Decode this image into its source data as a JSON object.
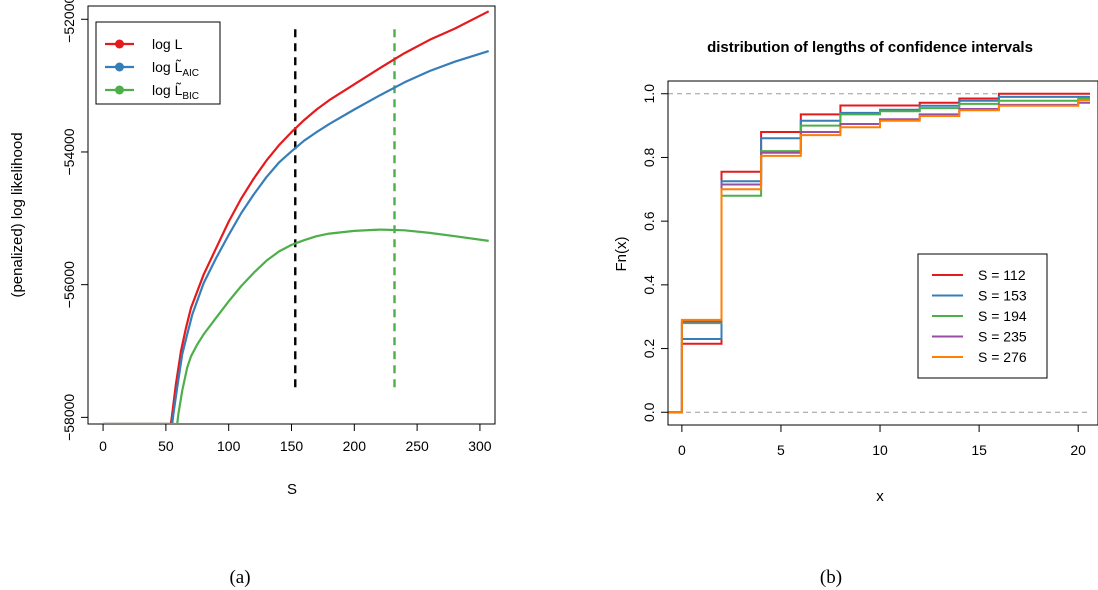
{
  "chart_data": [
    {
      "type": "line",
      "title": "",
      "xlabel": "S",
      "ylabel": "(penalized) log likelihood",
      "caption": "(a)",
      "xlim": [
        -12,
        312
      ],
      "ylim": [
        -58100,
        -51800
      ],
      "xticks": [
        0,
        50,
        100,
        150,
        200,
        250,
        300
      ],
      "yticks": [
        -58000,
        -56000,
        -54000,
        -52000
      ],
      "grid": false,
      "legend_position": "top-left",
      "series": [
        {
          "name": "log L",
          "legend_main": "log L",
          "legend_sub": "",
          "color": "#e41a1c",
          "x": [
            0,
            54,
            55,
            58,
            62,
            66,
            70,
            80,
            90,
            100,
            110,
            120,
            130,
            140,
            150,
            160,
            170,
            180,
            200,
            220,
            240,
            260,
            280,
            307
          ],
          "y": [
            -58100,
            -58100,
            -57950,
            -57500,
            -57000,
            -56650,
            -56350,
            -55850,
            -55450,
            -55050,
            -54700,
            -54400,
            -54130,
            -53900,
            -53700,
            -53520,
            -53360,
            -53220,
            -52980,
            -52740,
            -52510,
            -52310,
            -52140,
            -51880
          ]
        },
        {
          "name": "log L̃_AIC",
          "legend_main": "log L̃",
          "legend_sub": "AIC",
          "color": "#377eb8",
          "x": [
            0,
            55,
            56,
            59,
            63,
            67,
            71,
            80,
            90,
            100,
            110,
            120,
            130,
            140,
            150,
            160,
            170,
            180,
            200,
            220,
            240,
            260,
            280,
            307
          ],
          "y": [
            -58100,
            -58100,
            -57950,
            -57550,
            -57050,
            -56750,
            -56450,
            -55980,
            -55600,
            -55250,
            -54920,
            -54640,
            -54380,
            -54160,
            -53990,
            -53830,
            -53700,
            -53580,
            -53360,
            -53150,
            -52950,
            -52780,
            -52640,
            -52480
          ]
        },
        {
          "name": "log L̃_BIC",
          "legend_main": "log L̃",
          "legend_sub": "BIC",
          "color": "#4daf4a",
          "x": [
            0,
            59,
            60,
            63,
            67,
            70,
            75,
            80,
            90,
            100,
            110,
            120,
            130,
            140,
            150,
            160,
            170,
            180,
            200,
            220,
            240,
            260,
            280,
            307
          ],
          "y": [
            -58100,
            -58100,
            -57950,
            -57600,
            -57250,
            -57080,
            -56900,
            -56750,
            -56500,
            -56250,
            -56020,
            -55820,
            -55640,
            -55500,
            -55400,
            -55330,
            -55270,
            -55230,
            -55190,
            -55170,
            -55180,
            -55220,
            -55270,
            -55340
          ]
        }
      ],
      "vlines": [
        {
          "x": 153,
          "color": "#000000"
        },
        {
          "x": 232,
          "color": "#4daf4a"
        }
      ]
    },
    {
      "type": "line",
      "title": "distribution of lengths of confidence intervals",
      "xlabel": "x",
      "ylabel": "Fn(x)",
      "caption": "(b)",
      "xlim": [
        -0.7,
        21
      ],
      "ylim": [
        -0.04,
        1.04
      ],
      "xticks": [
        0,
        5,
        10,
        15,
        20
      ],
      "yticks": [
        "0.0",
        "0.2",
        "0.4",
        "0.6",
        "0.8",
        "1.0"
      ],
      "grid": false,
      "legend_position": "center-right",
      "hlines": [
        0,
        1
      ],
      "series": [
        {
          "name": "S = 112",
          "color": "#e41a1c",
          "steps": [
            [
              -1,
              0
            ],
            [
              0,
              0.215
            ],
            [
              2,
              0.755
            ],
            [
              4,
              0.88
            ],
            [
              6,
              0.935
            ],
            [
              8,
              0.963
            ],
            [
              10,
              0.963
            ],
            [
              12,
              0.972
            ],
            [
              14,
              0.985
            ],
            [
              16,
              1.0
            ],
            [
              22,
              1.0
            ]
          ]
        },
        {
          "name": "S = 153",
          "color": "#377eb8",
          "steps": [
            [
              -1,
              0
            ],
            [
              0,
              0.23
            ],
            [
              2,
              0.725
            ],
            [
              4,
              0.86
            ],
            [
              6,
              0.915
            ],
            [
              8,
              0.94
            ],
            [
              10,
              0.95
            ],
            [
              12,
              0.962
            ],
            [
              14,
              0.978
            ],
            [
              16,
              0.99
            ],
            [
              22,
              0.99
            ]
          ]
        },
        {
          "name": "S = 194",
          "color": "#4daf4a",
          "steps": [
            [
              -1,
              0
            ],
            [
              0,
              0.28
            ],
            [
              2,
              0.68
            ],
            [
              4,
              0.82
            ],
            [
              6,
              0.9
            ],
            [
              8,
              0.935
            ],
            [
              10,
              0.945
            ],
            [
              12,
              0.955
            ],
            [
              14,
              0.968
            ],
            [
              16,
              0.978
            ],
            [
              20,
              0.985
            ],
            [
              22,
              0.985
            ]
          ]
        },
        {
          "name": "S = 235",
          "color": "#984ea3",
          "steps": [
            [
              -1,
              0
            ],
            [
              0,
              0.285
            ],
            [
              2,
              0.715
            ],
            [
              4,
              0.815
            ],
            [
              6,
              0.88
            ],
            [
              8,
              0.905
            ],
            [
              10,
              0.92
            ],
            [
              12,
              0.935
            ],
            [
              14,
              0.952
            ],
            [
              16,
              0.965
            ],
            [
              20,
              0.972
            ],
            [
              22,
              0.972
            ]
          ]
        },
        {
          "name": "S = 276",
          "color": "#ff7f00",
          "steps": [
            [
              -1,
              0
            ],
            [
              0,
              0.29
            ],
            [
              2,
              0.7
            ],
            [
              4,
              0.805
            ],
            [
              6,
              0.87
            ],
            [
              8,
              0.895
            ],
            [
              10,
              0.915
            ],
            [
              12,
              0.93
            ],
            [
              14,
              0.948
            ],
            [
              16,
              0.962
            ],
            [
              20,
              0.98
            ],
            [
              22,
              0.98
            ]
          ]
        }
      ]
    }
  ]
}
